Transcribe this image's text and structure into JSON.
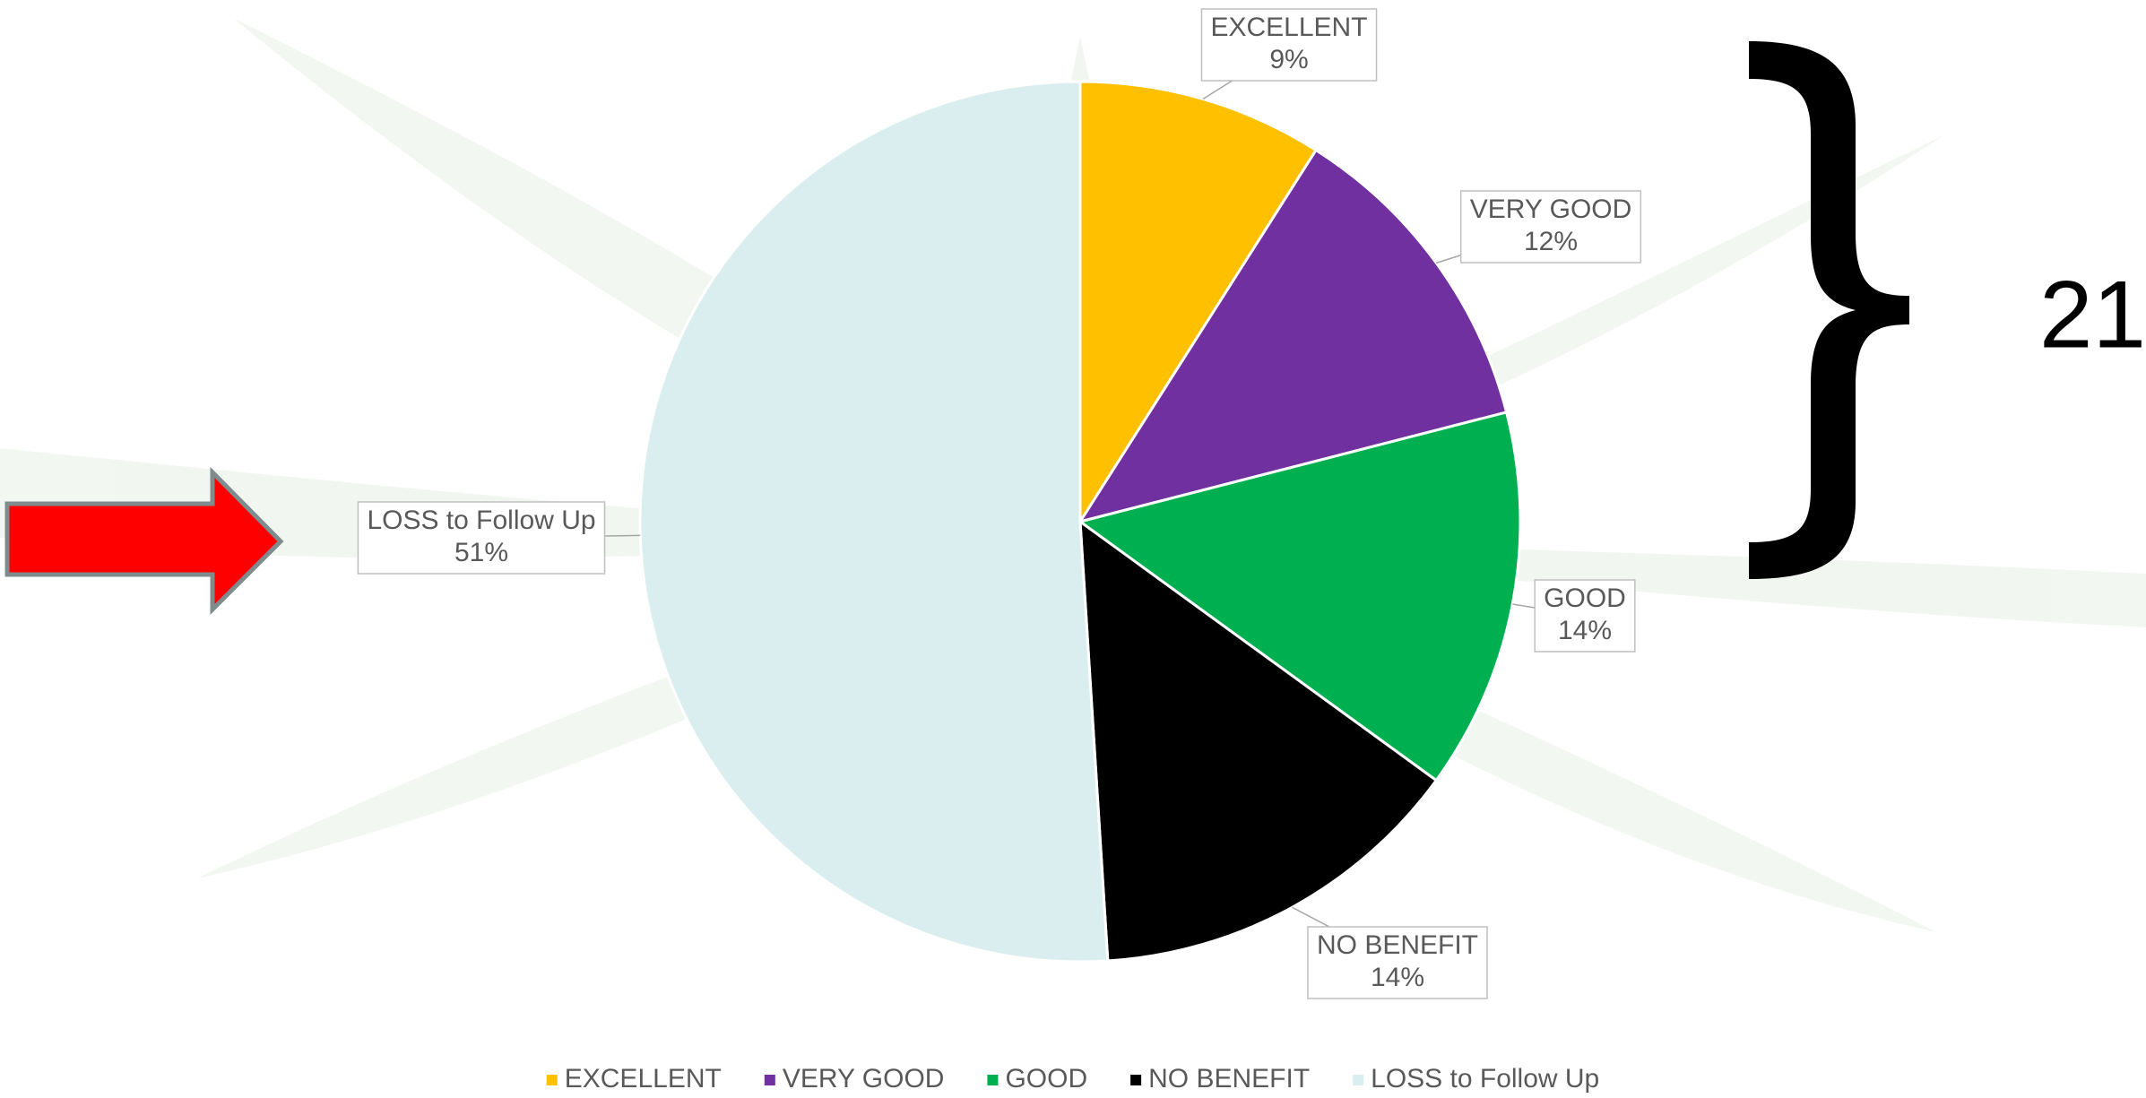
{
  "chart_data": {
    "type": "pie",
    "categories": [
      "EXCELLENT",
      "VERY GOOD",
      "GOOD",
      "NO BENEFIT",
      "LOSS to Follow Up"
    ],
    "values": [
      9,
      12,
      14,
      14,
      51
    ],
    "value_labels": [
      "9%",
      "12%",
      "14%",
      "14%",
      "51%"
    ],
    "colors": [
      "#FFC000",
      "#7030A0",
      "#00B050",
      "#000000",
      "#DAEEF0"
    ],
    "annotation": "21%",
    "legend": "bottom"
  }
}
